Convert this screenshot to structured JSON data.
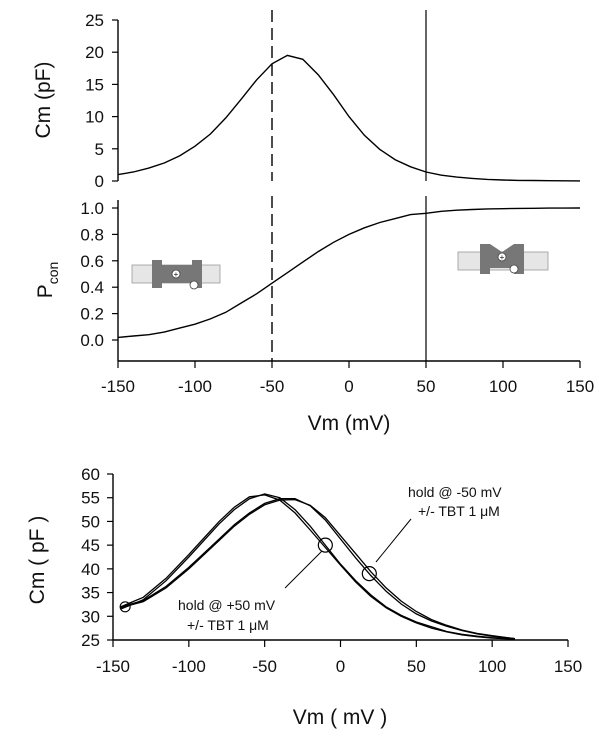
{
  "chart_data": [
    {
      "type": "line",
      "panel": "top",
      "ylabel": "Cm (pF)",
      "ylim": [
        0,
        25
      ],
      "yticks": [
        0,
        5,
        10,
        15,
        20,
        25
      ],
      "xlim": [
        -150,
        150
      ],
      "series": [
        {
          "x": [
            -150,
            -140,
            -130,
            -120,
            -110,
            -100,
            -90,
            -80,
            -70,
            -60,
            -50,
            -40,
            -30,
            -20,
            -10,
            0,
            10,
            20,
            30,
            40,
            50,
            60,
            70,
            80,
            90,
            100,
            110,
            120,
            130,
            140,
            150
          ],
          "values": [
            1.0,
            1.4,
            2.0,
            2.8,
            3.9,
            5.4,
            7.3,
            9.8,
            12.7,
            15.7,
            18.2,
            19.5,
            18.9,
            16.5,
            13.4,
            10.0,
            7.1,
            4.9,
            3.3,
            2.2,
            1.4,
            0.9,
            0.6,
            0.4,
            0.25,
            0.16,
            0.1,
            0.07,
            0.04,
            0.03,
            0.02
          ]
        }
      ],
      "vlines": [
        {
          "x": -50,
          "style": "dashed"
        },
        {
          "x": 50,
          "style": "solid"
        }
      ]
    },
    {
      "type": "line",
      "panel": "middle",
      "ylabel_main": "P",
      "ylabel_sub": "con",
      "ylim": [
        0,
        1
      ],
      "yticks": [
        "0.0",
        "0.2",
        "0.4",
        "0.6",
        "0.8",
        "1.0"
      ],
      "xlim": [
        -150,
        150
      ],
      "xticks": [
        -150,
        -100,
        -50,
        0,
        50,
        100,
        150
      ],
      "xlabel": "Vm (mV)",
      "series": [
        {
          "x": [
            -150,
            -140,
            -130,
            -120,
            -110,
            -100,
            -90,
            -80,
            -70,
            -60,
            -50,
            -40,
            -30,
            -20,
            -10,
            0,
            10,
            20,
            30,
            40,
            50,
            60,
            70,
            80,
            90,
            100,
            110,
            120,
            130,
            140,
            150
          ],
          "values": [
            0.02,
            0.03,
            0.04,
            0.06,
            0.09,
            0.12,
            0.16,
            0.21,
            0.28,
            0.35,
            0.43,
            0.51,
            0.59,
            0.67,
            0.74,
            0.8,
            0.85,
            0.89,
            0.92,
            0.95,
            0.96,
            0.975,
            0.983,
            0.989,
            0.993,
            0.995,
            0.997,
            0.998,
            0.999,
            0.999,
            1.0
          ]
        }
      ],
      "vlines": [
        {
          "x": -50,
          "style": "dashed"
        },
        {
          "x": 50,
          "style": "solid"
        }
      ],
      "insets": [
        "membrane-protein-compact-icon",
        "membrane-protein-expanded-icon"
      ]
    },
    {
      "type": "line",
      "panel": "bottom",
      "ylabel": "Cm ( pF )",
      "xlabel": "Vm ( mV )",
      "ylim": [
        25,
        60
      ],
      "yticks": [
        25,
        30,
        35,
        40,
        45,
        50,
        55,
        60
      ],
      "xlim": [
        -150,
        150
      ],
      "xticks": [
        -150,
        -100,
        -50,
        0,
        50,
        100,
        150
      ],
      "series": [
        {
          "x": [
            -145,
            -130,
            -115,
            -100,
            -90,
            -80,
            -70,
            -60,
            -50,
            -40,
            -30,
            -20,
            -10,
            0,
            10,
            20,
            30,
            40,
            50,
            60,
            70,
            80,
            90,
            100,
            115
          ],
          "values": [
            31.5,
            33.5,
            37.5,
            42.5,
            46,
            49.5,
            52.5,
            54.8,
            55.8,
            55,
            52.5,
            49,
            45,
            41,
            37.5,
            34.5,
            32,
            30.2,
            28.8,
            27.8,
            26.8,
            26.2,
            25.8,
            25.5,
            25.2
          ]
        },
        {
          "x": [
            -145,
            -130,
            -115,
            -100,
            -90,
            -80,
            -70,
            -60,
            -50,
            -40,
            -30,
            -20,
            -10,
            0,
            10,
            20,
            30,
            40,
            50,
            60,
            70,
            80,
            90,
            100,
            115
          ],
          "values": [
            32,
            34,
            38,
            43,
            46.5,
            50,
            53,
            55.2,
            55.6,
            54.5,
            51.8,
            48.2,
            44.5,
            40.8,
            37.2,
            34.2,
            31.8,
            30,
            28.6,
            27.5,
            26.7,
            26.1,
            25.7,
            25.4,
            25.2
          ]
        },
        {
          "x": [
            -145,
            -130,
            -115,
            -100,
            -90,
            -80,
            -70,
            -60,
            -50,
            -40,
            -30,
            -20,
            -10,
            0,
            10,
            20,
            30,
            40,
            50,
            60,
            70,
            80,
            90,
            100,
            115
          ],
          "values": [
            32,
            33.3,
            36.3,
            40.3,
            43.3,
            46.3,
            49.3,
            51.8,
            53.8,
            54.8,
            54.8,
            53.3,
            50.3,
            46.3,
            42.3,
            38.6,
            35.3,
            32.6,
            30.5,
            29,
            27.9,
            27,
            26.3,
            25.8,
            25.3
          ]
        },
        {
          "x": [
            -145,
            -130,
            -115,
            -100,
            -90,
            -80,
            -70,
            -60,
            -50,
            -40,
            -30,
            -20,
            -10,
            0,
            10,
            20,
            30,
            40,
            50,
            60,
            70,
            80,
            90,
            100,
            115
          ],
          "values": [
            31.8,
            33.1,
            36,
            40,
            43,
            46,
            49,
            51.5,
            53.5,
            54.5,
            54.6,
            53.4,
            50.8,
            47,
            43.2,
            39.4,
            36,
            33.2,
            31,
            29.3,
            28.1,
            27.1,
            26.4,
            25.9,
            25.3
          ]
        }
      ],
      "annotations": [
        {
          "line1": "hold @ -50 mV",
          "line2": "+/- TBT 1 μM",
          "marker_x": 19,
          "marker_y": 39
        },
        {
          "line1": "hold @ +50 mV",
          "line2": "+/- TBT 1 μM",
          "marker_x": -10,
          "marker_y": 45
        }
      ],
      "start_marker": {
        "x": -142,
        "y": 32
      }
    }
  ]
}
